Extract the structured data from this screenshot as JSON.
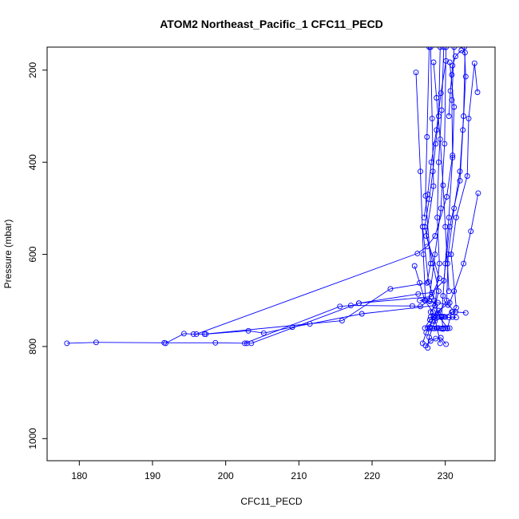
{
  "chart_data": {
    "type": "line",
    "title": "ATOM2 Northeast_Pacific_1 CFC11_PECD",
    "xlabel": "CFC11_PECD",
    "ylabel": "Pressure (mbar)",
    "xlim": [
      175.6,
      236.8
    ],
    "ylim": [
      1048,
      150
    ],
    "y_reversed": true,
    "x_ticks": [
      180,
      190,
      200,
      210,
      220,
      230
    ],
    "y_ticks": [
      200,
      400,
      600,
      800,
      1000
    ],
    "grid": false,
    "legend": "none",
    "line_color": "#0000ff",
    "marker": "open-circle",
    "series": [
      {
        "points": [
          [
            178.3,
            793
          ],
          [
            182.3,
            791
          ],
          [
            191.6,
            792
          ],
          [
            198.6,
            792
          ],
          [
            202.9,
            793
          ],
          [
            203.5,
            793
          ],
          [
            218.2,
            706
          ],
          [
            228.1,
            692
          ],
          [
            229.2,
            652
          ],
          [
            227.4,
            560
          ],
          [
            228.4,
            452
          ],
          [
            228.2,
            305
          ],
          [
            228.0,
            150
          ]
        ]
      },
      {
        "points": [
          [
            191.8,
            793
          ],
          [
            194.3,
            772
          ],
          [
            195.6,
            773
          ],
          [
            197.1,
            773
          ],
          [
            215.9,
            744
          ],
          [
            222.5,
            675
          ],
          [
            227.5,
            662
          ],
          [
            228.0,
            620
          ],
          [
            227.3,
            473
          ],
          [
            227.5,
            345
          ],
          [
            227.8,
            150
          ]
        ]
      },
      {
        "points": [
          [
            197.3,
            773
          ],
          [
            203.1,
            766
          ],
          [
            205.2,
            771
          ],
          [
            209.1,
            758
          ],
          [
            211.5,
            751
          ],
          [
            218.6,
            729
          ],
          [
            228.6,
            711
          ],
          [
            229.2,
            620
          ],
          [
            228.9,
            520
          ],
          [
            229.1,
            400
          ],
          [
            229.5,
            287
          ],
          [
            229.8,
            150
          ]
        ]
      },
      {
        "points": [
          [
            202.6,
            793
          ],
          [
            215.6,
            713
          ],
          [
            217.1,
            711
          ],
          [
            225.5,
            712
          ],
          [
            226.6,
            713
          ],
          [
            227.8,
            700
          ],
          [
            228.6,
            600
          ],
          [
            229.4,
            500
          ],
          [
            229.9,
            360
          ],
          [
            230.1,
            150
          ]
        ]
      },
      {
        "points": [
          [
            196.0,
            773
          ],
          [
            226.2,
            598
          ],
          [
            227.5,
            583
          ],
          [
            228.6,
            560
          ],
          [
            230.2,
            475
          ],
          [
            231.0,
            385
          ],
          [
            230.9,
            265
          ],
          [
            231.2,
            150
          ]
        ]
      },
      {
        "points": [
          [
            218.2,
            706
          ],
          [
            226.3,
            686
          ],
          [
            228.2,
            683
          ],
          [
            229.8,
            657
          ],
          [
            230.6,
            540
          ],
          [
            232.0,
            440
          ],
          [
            232.4,
            330
          ],
          [
            232.8,
            214
          ],
          [
            232.6,
            150
          ]
        ]
      },
      {
        "points": [
          [
            225.8,
            625
          ],
          [
            226.5,
            662
          ],
          [
            227.2,
            700
          ],
          [
            228.3,
            725
          ],
          [
            228.9,
            760
          ],
          [
            229.3,
            793
          ]
        ]
      },
      {
        "points": [
          [
            226.9,
            793
          ],
          [
            227.4,
            770
          ],
          [
            228.2,
            745
          ],
          [
            228.0,
            725
          ],
          [
            228.6,
            712
          ],
          [
            229.1,
            680
          ],
          [
            228.3,
            620
          ],
          [
            227.2,
            540
          ],
          [
            227.8,
            480
          ],
          [
            228.3,
            420
          ],
          [
            228.7,
            360
          ],
          [
            229.1,
            300
          ],
          [
            229.3,
            150
          ]
        ]
      },
      {
        "points": [
          [
            227.6,
            803
          ],
          [
            227.8,
            780
          ],
          [
            228.6,
            745
          ],
          [
            229.8,
            735
          ],
          [
            231.0,
            725
          ],
          [
            231.5,
            716
          ],
          [
            230.8,
            600
          ],
          [
            231.5,
            520
          ],
          [
            233.0,
            430
          ],
          [
            233.2,
            305
          ],
          [
            234.0,
            185
          ],
          [
            234.4,
            248
          ]
        ]
      },
      {
        "points": [
          [
            227.2,
            760
          ],
          [
            227.9,
            742
          ],
          [
            229.0,
            728
          ],
          [
            230.2,
            700
          ],
          [
            230.4,
            600
          ],
          [
            231.2,
            500
          ],
          [
            232.0,
            420
          ],
          [
            232.5,
            300
          ],
          [
            232.7,
            162
          ],
          [
            232.2,
            157
          ],
          [
            231.4,
            170
          ],
          [
            231.0,
            190
          ],
          [
            230.9,
            210
          ],
          [
            230.7,
            245
          ],
          [
            230.5,
            300
          ]
        ]
      },
      {
        "points": [
          [
            227.9,
            758
          ],
          [
            228.4,
            735
          ],
          [
            229.1,
            722
          ],
          [
            230.6,
            705
          ],
          [
            231.2,
            680
          ],
          [
            232.5,
            620
          ],
          [
            233.5,
            550
          ],
          [
            234.5,
            467
          ]
        ]
      },
      {
        "points": [
          [
            226.5,
            700
          ],
          [
            227.9,
            702
          ],
          [
            229.0,
            705
          ],
          [
            230.4,
            710
          ],
          [
            231.4,
            725
          ],
          [
            232.8,
            727
          ]
        ]
      },
      {
        "points": [
          [
            226.9,
            540
          ],
          [
            227.7,
            660
          ],
          [
            228.5,
            700
          ],
          [
            229.2,
            735
          ],
          [
            230.3,
            760
          ],
          [
            230.9,
            725
          ]
        ]
      },
      {
        "points": [
          [
            227.1,
            520
          ],
          [
            227.6,
            470
          ],
          [
            228.1,
            400
          ],
          [
            228.8,
            330
          ],
          [
            229.4,
            250
          ],
          [
            230.1,
            180
          ]
        ]
      },
      {
        "points": [
          [
            226.0,
            205
          ],
          [
            226.6,
            420
          ],
          [
            227.0,
            600
          ],
          [
            227.3,
            700
          ]
        ]
      },
      {
        "points": [
          [
            230.6,
            183
          ],
          [
            231.2,
            280
          ],
          [
            231.0,
            390
          ],
          [
            230.5,
            520
          ],
          [
            230.0,
            620
          ],
          [
            229.7,
            690
          ],
          [
            229.5,
            735
          ],
          [
            229.7,
            762
          ]
        ]
      },
      {
        "points": [
          [
            228.4,
            183
          ],
          [
            228.8,
            260
          ],
          [
            229.3,
            350
          ],
          [
            229.7,
            450
          ],
          [
            230.0,
            540
          ],
          [
            230.3,
            620
          ],
          [
            230.5,
            680
          ]
        ]
      },
      {
        "points": [
          [
            227.6,
            760
          ],
          [
            227.9,
            761
          ],
          [
            228.2,
            760
          ],
          [
            228.5,
            761
          ],
          [
            228.8,
            760
          ],
          [
            229.1,
            760
          ],
          [
            229.4,
            761
          ],
          [
            229.7,
            760
          ],
          [
            230.0,
            760
          ],
          [
            230.3,
            761
          ],
          [
            230.6,
            760
          ]
        ]
      },
      {
        "points": [
          [
            228.0,
            736
          ],
          [
            228.5,
            737
          ],
          [
            229.0,
            736
          ],
          [
            229.5,
            737
          ],
          [
            230.0,
            736
          ],
          [
            230.5,
            737
          ],
          [
            231.0,
            736
          ],
          [
            231.5,
            737
          ]
        ]
      },
      {
        "points": [
          [
            227.3,
            798
          ],
          [
            228.0,
            788
          ],
          [
            228.7,
            783
          ],
          [
            229.4,
            781
          ],
          [
            230.1,
            795
          ]
        ]
      }
    ]
  }
}
